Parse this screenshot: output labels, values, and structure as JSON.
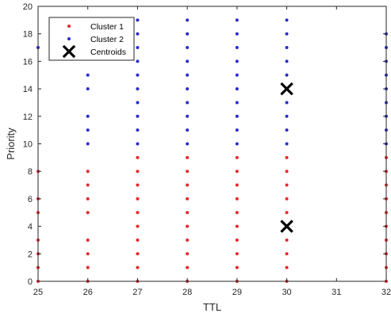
{
  "chart_data": {
    "type": "scatter",
    "title": "",
    "xlabel": "TTL",
    "ylabel": "Priority",
    "xlim": [
      25,
      32
    ],
    "ylim": [
      0,
      20
    ],
    "xticks": [
      25,
      26,
      27,
      28,
      29,
      30,
      31,
      32
    ],
    "yticks": [
      0,
      2,
      4,
      6,
      8,
      10,
      12,
      14,
      16,
      18,
      20
    ],
    "grid": false,
    "legend_position": "top-left",
    "series": [
      {
        "name": "Cluster 1",
        "color": "#e8262a",
        "marker": "dot",
        "points": [
          [
            25,
            0
          ],
          [
            25,
            1
          ],
          [
            25,
            2
          ],
          [
            25,
            3
          ],
          [
            25,
            5
          ],
          [
            25,
            6
          ],
          [
            25,
            8
          ],
          [
            26,
            0
          ],
          [
            26,
            1
          ],
          [
            26,
            2
          ],
          [
            26,
            3
          ],
          [
            26,
            5
          ],
          [
            26,
            6
          ],
          [
            26,
            7
          ],
          [
            26,
            8
          ],
          [
            27,
            0
          ],
          [
            27,
            1
          ],
          [
            27,
            2
          ],
          [
            27,
            3
          ],
          [
            27,
            4
          ],
          [
            27,
            5
          ],
          [
            27,
            6
          ],
          [
            27,
            7
          ],
          [
            27,
            8
          ],
          [
            27,
            9
          ],
          [
            28,
            0
          ],
          [
            28,
            1
          ],
          [
            28,
            2
          ],
          [
            28,
            3
          ],
          [
            28,
            4
          ],
          [
            28,
            5
          ],
          [
            28,
            6
          ],
          [
            28,
            7
          ],
          [
            28,
            8
          ],
          [
            28,
            9
          ],
          [
            29,
            0
          ],
          [
            29,
            1
          ],
          [
            29,
            2
          ],
          [
            29,
            3
          ],
          [
            29,
            4
          ],
          [
            29,
            5
          ],
          [
            29,
            6
          ],
          [
            29,
            7
          ],
          [
            29,
            8
          ],
          [
            29,
            9
          ],
          [
            30,
            0
          ],
          [
            30,
            1
          ],
          [
            30,
            2
          ],
          [
            30,
            3
          ],
          [
            30,
            4
          ],
          [
            30,
            5
          ],
          [
            30,
            6
          ],
          [
            30,
            7
          ],
          [
            30,
            8
          ],
          [
            30,
            9
          ],
          [
            32,
            0
          ],
          [
            32,
            1
          ],
          [
            32,
            2
          ],
          [
            32,
            3
          ],
          [
            32,
            4
          ],
          [
            32,
            5
          ],
          [
            32,
            6
          ],
          [
            32,
            7
          ],
          [
            32,
            8
          ],
          [
            32,
            9
          ]
        ]
      },
      {
        "name": "Cluster 2",
        "color": "#2a2acf",
        "marker": "dot",
        "points": [
          [
            25,
            17
          ],
          [
            26,
            10
          ],
          [
            26,
            11
          ],
          [
            26,
            12
          ],
          [
            26,
            14
          ],
          [
            26,
            15
          ],
          [
            27,
            10
          ],
          [
            27,
            11
          ],
          [
            27,
            12
          ],
          [
            27,
            13
          ],
          [
            27,
            14
          ],
          [
            27,
            15
          ],
          [
            27,
            16
          ],
          [
            27,
            17
          ],
          [
            27,
            18
          ],
          [
            27,
            19
          ],
          [
            28,
            10
          ],
          [
            28,
            11
          ],
          [
            28,
            12
          ],
          [
            28,
            13
          ],
          [
            28,
            14
          ],
          [
            28,
            15
          ],
          [
            28,
            16
          ],
          [
            28,
            17
          ],
          [
            28,
            18
          ],
          [
            28,
            19
          ],
          [
            29,
            10
          ],
          [
            29,
            11
          ],
          [
            29,
            12
          ],
          [
            29,
            13
          ],
          [
            29,
            14
          ],
          [
            29,
            15
          ],
          [
            29,
            16
          ],
          [
            29,
            17
          ],
          [
            29,
            18
          ],
          [
            29,
            19
          ],
          [
            30,
            10
          ],
          [
            30,
            11
          ],
          [
            30,
            12
          ],
          [
            30,
            13
          ],
          [
            30,
            14
          ],
          [
            30,
            15
          ],
          [
            30,
            16
          ],
          [
            30,
            17
          ],
          [
            30,
            18
          ],
          [
            30,
            19
          ],
          [
            32,
            10
          ],
          [
            32,
            11
          ],
          [
            32,
            12
          ],
          [
            32,
            13
          ],
          [
            32,
            14
          ],
          [
            32,
            15
          ],
          [
            32,
            16
          ],
          [
            32,
            17
          ],
          [
            32,
            18
          ]
        ]
      },
      {
        "name": "Centroids",
        "color": "#000000",
        "marker": "x",
        "points": [
          [
            30,
            14
          ],
          [
            30,
            4
          ]
        ]
      }
    ]
  }
}
